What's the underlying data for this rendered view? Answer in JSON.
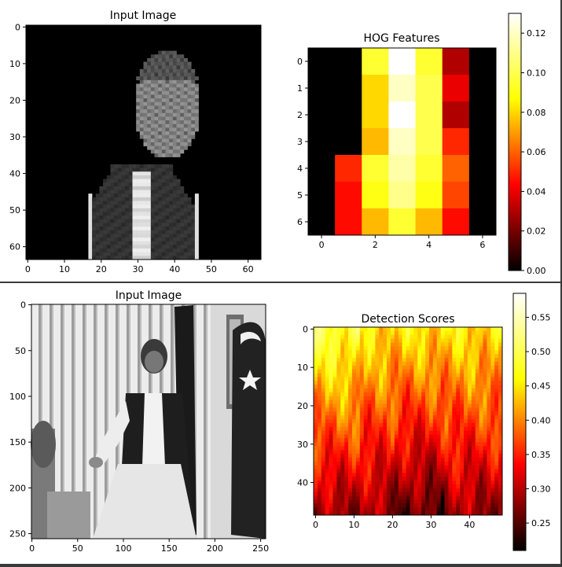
{
  "chart_data": [
    {
      "type": "image",
      "title": "Input Image",
      "xticks": [
        0,
        10,
        20,
        30,
        40,
        50,
        60
      ],
      "yticks": [
        0,
        10,
        20,
        30,
        40,
        50,
        60
      ],
      "xlim": [
        -0.5,
        63.5
      ],
      "ylim": [
        63.5,
        -0.5
      ],
      "colormap": "gray"
    },
    {
      "type": "heatmap",
      "title": "HOG Features",
      "xticks": [
        0,
        2,
        4,
        6
      ],
      "yticks": [
        0,
        1,
        2,
        3,
        4,
        5,
        6
      ],
      "xlim": [
        -0.5,
        6.5
      ],
      "ylim": [
        6.5,
        -0.5
      ],
      "colormap": "hot",
      "colorbar": {
        "range": [
          0.0,
          0.13
        ],
        "ticks": [
          "0.00",
          "0.02",
          "0.04",
          "0.06",
          "0.08",
          "0.10",
          "0.12"
        ]
      },
      "z": [
        [
          0.0,
          0.0,
          0.095,
          0.13,
          0.095,
          0.03,
          0.0
        ],
        [
          0.0,
          0.0,
          0.08,
          0.12,
          0.1,
          0.04,
          0.0
        ],
        [
          0.0,
          0.0,
          0.08,
          0.13,
          0.1,
          0.03,
          0.0
        ],
        [
          0.0,
          0.0,
          0.075,
          0.12,
          0.1,
          0.05,
          0.0
        ],
        [
          0.0,
          0.05,
          0.095,
          0.115,
          0.095,
          0.06,
          0.0
        ],
        [
          0.0,
          0.045,
          0.09,
          0.11,
          0.09,
          0.055,
          0.0
        ],
        [
          0.0,
          0.045,
          0.075,
          0.095,
          0.075,
          0.045,
          0.0
        ]
      ]
    },
    {
      "type": "image",
      "title": "Input Image",
      "xticks": [
        0,
        50,
        100,
        150,
        200,
        250
      ],
      "yticks": [
        0,
        50,
        100,
        150,
        200,
        250
      ],
      "xlim": [
        -0.5,
        255.5
      ],
      "ylim": [
        255.5,
        -0.5
      ],
      "colormap": "gray"
    },
    {
      "type": "heatmap",
      "title": "Detection Scores",
      "xticks": [
        0,
        10,
        20,
        30,
        40
      ],
      "yticks": [
        0,
        10,
        20,
        30,
        40
      ],
      "xlim": [
        -0.5,
        48.5
      ],
      "ylim": [
        48.5,
        -0.5
      ],
      "rows": 49,
      "cols": 49,
      "colormap": "hot",
      "colorbar": {
        "range": [
          0.21,
          0.585
        ],
        "ticks": [
          "0.25",
          "0.30",
          "0.35",
          "0.40",
          "0.45",
          "0.50",
          "0.55"
        ]
      }
    }
  ]
}
